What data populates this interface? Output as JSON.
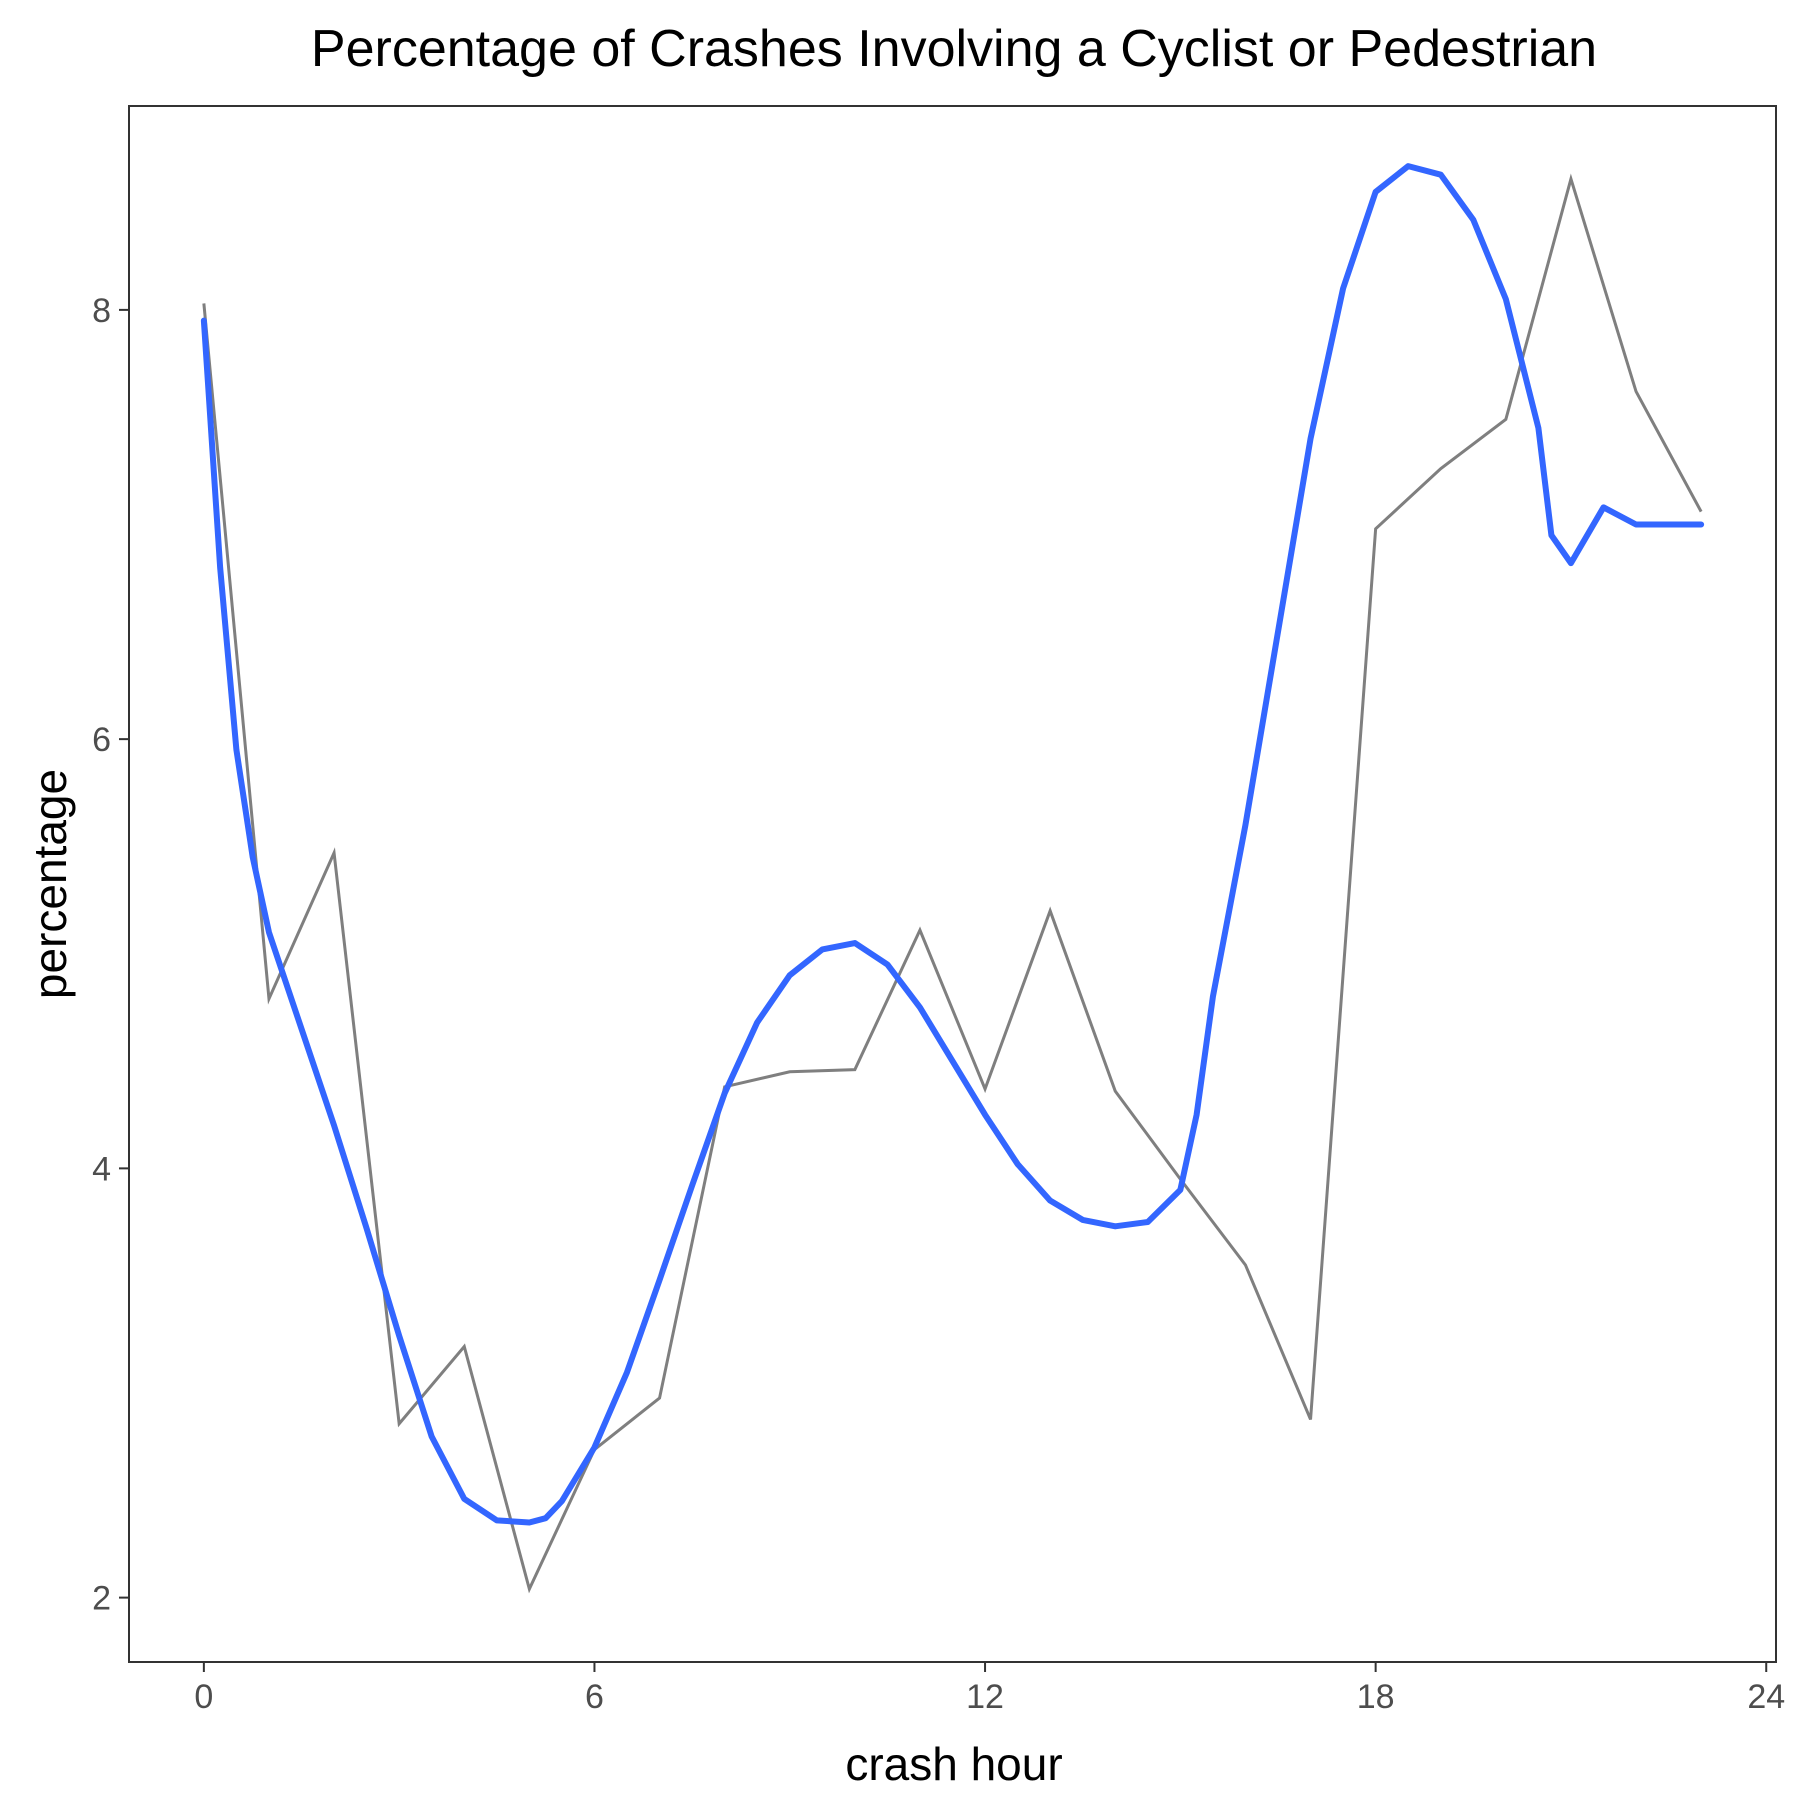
{
  "chart_data": {
    "type": "line",
    "title": "Percentage of Crashes Involving a Cyclist or Pedestrian",
    "xlabel": "crash hour",
    "ylabel": "percentage",
    "xlim": [
      -1.15,
      24.15
    ],
    "ylim": [
      1.7,
      8.95
    ],
    "x_ticks": [
      0,
      6,
      12,
      18,
      24
    ],
    "y_ticks": [
      2,
      4,
      6,
      8
    ],
    "grid": false,
    "legend": "none",
    "colors": {
      "raw": "#7f7f7f",
      "smooth": "#3366ff",
      "axis": "#333333",
      "tick_text": "#4d4d4d"
    },
    "series": [
      {
        "x": [
          0,
          1,
          2,
          3,
          4,
          5,
          6,
          7,
          8,
          9,
          10,
          11,
          12,
          13,
          14,
          15,
          16,
          17,
          18,
          19,
          20,
          21,
          22,
          23
        ],
        "values": [
          8.03,
          4.79,
          5.47,
          2.81,
          3.17,
          2.04,
          2.69,
          2.93,
          4.38,
          4.45,
          4.46,
          5.11,
          4.37,
          5.2,
          4.36,
          3.95,
          3.55,
          2.83,
          6.98,
          7.26,
          7.49,
          8.61,
          7.62,
          7.06
        ]
      },
      {
        "x": [
          0,
          0.25,
          0.5,
          0.75,
          1,
          1.5,
          2,
          2.5,
          3,
          3.5,
          4,
          4.5,
          5,
          5.25,
          5.5,
          6,
          6.5,
          7,
          7.5,
          8,
          8.5,
          9,
          9.5,
          10,
          10.5,
          11,
          11.5,
          12,
          12.5,
          13,
          13.5,
          14,
          14.5,
          15,
          15.25,
          15.5,
          16,
          16.5,
          17,
          17.5,
          18,
          18.5,
          19,
          19.5,
          20,
          20.5,
          20.7,
          21,
          21.5,
          22,
          22.5,
          22.75,
          23
        ],
        "values": [
          7.95,
          6.8,
          5.95,
          5.45,
          5.1,
          4.65,
          4.2,
          3.72,
          3.22,
          2.75,
          2.46,
          2.36,
          2.35,
          2.37,
          2.45,
          2.7,
          3.05,
          3.48,
          3.92,
          4.35,
          4.68,
          4.9,
          5.02,
          5.05,
          4.95,
          4.75,
          4.5,
          4.25,
          4.02,
          3.85,
          3.76,
          3.73,
          3.75,
          3.9,
          4.25,
          4.8,
          5.6,
          6.5,
          7.4,
          8.1,
          8.55,
          8.67,
          8.63,
          8.42,
          8.05,
          7.45,
          6.95,
          6.82,
          7.08,
          7.0,
          7.0,
          7.0,
          7.0
        ]
      }
    ]
  }
}
